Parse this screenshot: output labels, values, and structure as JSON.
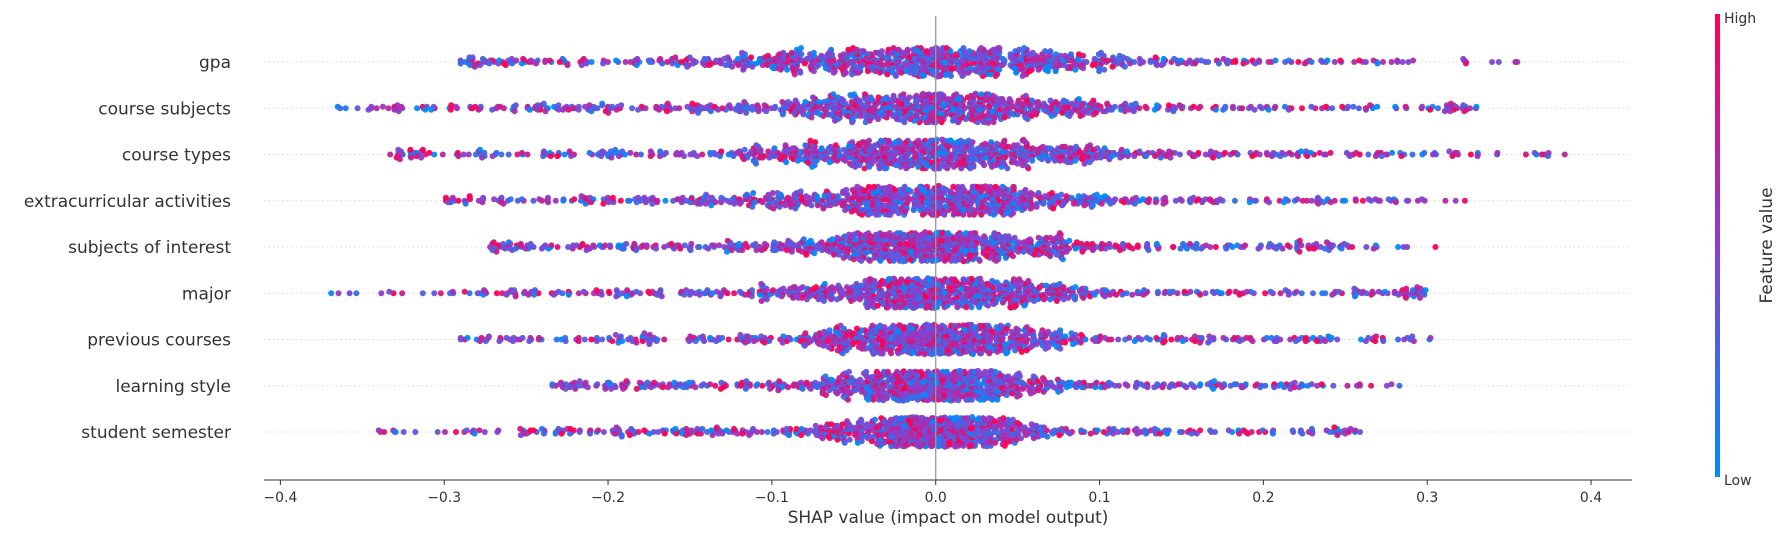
{
  "chart_data": {
    "type": "scatter",
    "subtype": "shap-beeswarm",
    "xlabel": "SHAP value (impact on model output)",
    "xlim": [
      -0.41,
      0.425
    ],
    "xticks": [
      -0.4,
      -0.3,
      -0.2,
      -0.1,
      0.0,
      0.1,
      0.2,
      0.3,
      0.4
    ],
    "xtick_labels": [
      "−0.4",
      "−0.3",
      "−0.2",
      "−0.1",
      "0.0",
      "0.1",
      "0.2",
      "0.3",
      "0.4"
    ],
    "features": [
      {
        "name": "gpa",
        "min": -0.29,
        "max": 0.355
      },
      {
        "name": "course subjects",
        "min": -0.365,
        "max": 0.33
      },
      {
        "name": "course types",
        "min": -0.333,
        "max": 0.384
      },
      {
        "name": "extracurricular activities",
        "min": -0.299,
        "max": 0.323
      },
      {
        "name": "subjects of interest",
        "min": -0.272,
        "max": 0.305
      },
      {
        "name": "major",
        "min": -0.369,
        "max": 0.299
      },
      {
        "name": "previous courses",
        "min": -0.29,
        "max": 0.302
      },
      {
        "name": "learning style",
        "min": -0.234,
        "max": 0.283
      },
      {
        "name": "student semester",
        "min": -0.34,
        "max": 0.259
      }
    ],
    "colorbar": {
      "label": "Feature value",
      "high_label": "High",
      "low_label": "Low",
      "low_color": "#008bfb",
      "mid_color": "#8a3fd0",
      "high_color": "#ff0052"
    },
    "zero_line": true,
    "grid": false
  }
}
